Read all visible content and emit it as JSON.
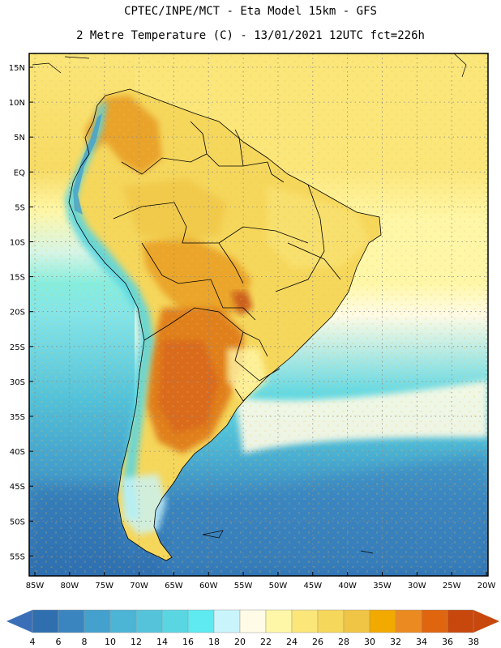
{
  "header": {
    "line1": "CPTEC/INPE/MCT -  Eta Model 15km - GFS",
    "line2": "2 Metre Temperature (C) - 13/01/2021 12UTC fct=226h"
  },
  "map": {
    "lat_labels": [
      "15N",
      "10N",
      "5N",
      "EQ",
      "5S",
      "10S",
      "15S",
      "20S",
      "25S",
      "30S",
      "35S",
      "40S",
      "45S",
      "50S",
      "55S"
    ],
    "lon_labels": [
      "85W",
      "80W",
      "75W",
      "70W",
      "65W",
      "60W",
      "55W",
      "50W",
      "45W",
      "40W",
      "35W",
      "30W",
      "25W",
      "20W"
    ],
    "grid": "dotted",
    "region": "South America"
  },
  "colorbar": {
    "values": [
      "4",
      "6",
      "8",
      "10",
      "12",
      "14",
      "16",
      "18",
      "20",
      "22",
      "24",
      "26",
      "28",
      "30",
      "32",
      "34",
      "36",
      "38"
    ],
    "colors": [
      "#2f6fb0",
      "#3a85c0",
      "#44a0cc",
      "#4cb4d4",
      "#55c4da",
      "#5ad6e2",
      "#5eeaf0",
      "#c9f4fb",
      "#fffbe6",
      "#fff7a8",
      "#fbe67a",
      "#f5d75c",
      "#f0c545",
      "#f2a900",
      "#ea8a20",
      "#e0650f",
      "#c8470c"
    ],
    "left_arrow_color": "#3a6fb8",
    "right_arrow_color": "#c8470c"
  }
}
